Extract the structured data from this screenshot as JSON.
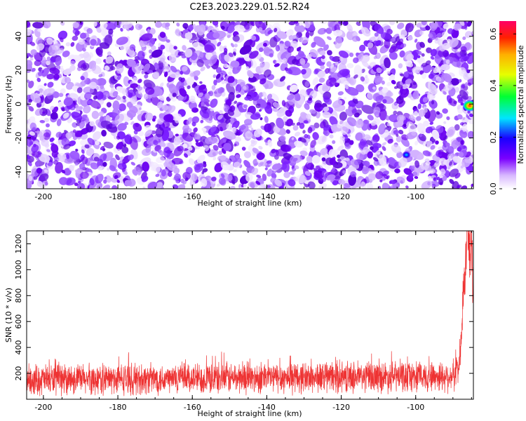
{
  "title": "C2E3.2023.229.01.52.R24",
  "colors": {
    "snr_line": "#ee3333",
    "axis": "#000000",
    "background": "#ffffff"
  },
  "chart_data": [
    {
      "type": "heatmap",
      "xlabel": "Height of straight line (km)",
      "ylabel": "Frequency (Hz)",
      "xlim": [
        -204.5,
        -84.5
      ],
      "ylim": [
        -50,
        49
      ],
      "x_ticks": [
        -200,
        -180,
        -160,
        -140,
        -120,
        -100
      ],
      "y_ticks": [
        -40,
        -20,
        0,
        20,
        40
      ],
      "colorbar": {
        "label": "Normalized spectral amplitude",
        "range": [
          0,
          0.65
        ],
        "ticks": [
          0.0,
          0.2,
          0.4,
          0.6
        ],
        "colormap": "rainbow (white-purple-blue-cyan-green-yellow-red-magenta)"
      },
      "background_noise_level": 0.1,
      "hotspots": [
        {
          "x": -85.5,
          "y": -1,
          "value": 0.6
        },
        {
          "x": -102.5,
          "y": -30,
          "value": 0.25
        }
      ]
    },
    {
      "type": "line",
      "xlabel": "Height of straight line (km)",
      "ylabel": "SNR (10 * v/v)",
      "xlim": [
        -204.5,
        -84.5
      ],
      "ylim": [
        0,
        1300
      ],
      "x_ticks": [
        -200,
        -180,
        -160,
        -140,
        -120,
        -100
      ],
      "y_ticks": [
        200,
        400,
        600,
        800,
        1000,
        1200
      ],
      "series": [
        {
          "x_start": -204.5,
          "x_end": -84.5,
          "baseline": 150,
          "noise_amplitude": 180,
          "peaks": [
            {
              "x": -86,
              "value": 1300
            },
            {
              "x": -85,
              "value": 1000
            },
            {
              "x": -87,
              "value": 700
            }
          ]
        }
      ]
    }
  ]
}
